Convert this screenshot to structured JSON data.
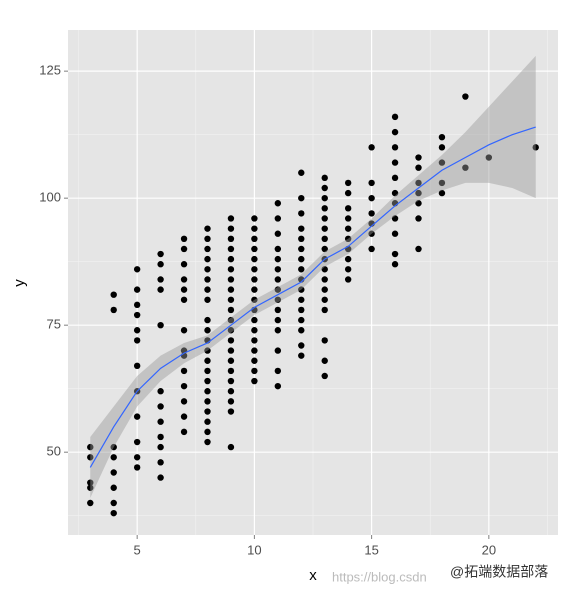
{
  "chart_data": {
    "type": "scatter",
    "xlabel": "x",
    "ylabel": "y",
    "xlim": [
      2.05,
      22.95
    ],
    "ylim": [
      33.7,
      133.1
    ],
    "xticks": [
      5,
      10,
      15,
      20
    ],
    "yticks": [
      50,
      75,
      100,
      125
    ],
    "grid": true,
    "panel_color": "#e5e5e5",
    "series": [
      {
        "color": "#000000",
        "x": [
          3,
          3,
          3,
          3,
          3,
          4,
          4,
          4,
          4,
          4,
          4,
          4,
          4,
          5,
          5,
          5,
          5,
          5,
          5,
          5,
          5,
          5,
          5,
          5,
          5,
          6,
          6,
          6,
          6,
          6,
          6,
          6,
          6,
          6,
          6,
          6,
          6,
          7,
          7,
          7,
          7,
          7,
          7,
          7,
          7,
          7,
          7,
          7,
          7,
          7,
          7,
          8,
          8,
          8,
          8,
          8,
          8,
          8,
          8,
          8,
          8,
          8,
          8,
          8,
          8,
          8,
          8,
          8,
          8,
          8,
          8,
          8,
          9,
          9,
          9,
          9,
          9,
          9,
          9,
          9,
          9,
          9,
          9,
          9,
          9,
          9,
          9,
          9,
          9,
          9,
          9,
          9,
          9,
          10,
          10,
          10,
          10,
          10,
          10,
          10,
          10,
          10,
          10,
          10,
          10,
          10,
          10,
          10,
          10,
          10,
          11,
          11,
          11,
          11,
          11,
          11,
          11,
          11,
          11,
          11,
          11,
          11,
          11,
          11,
          11,
          12,
          12,
          12,
          12,
          12,
          12,
          12,
          12,
          12,
          12,
          12,
          12,
          12,
          12,
          12,
          12,
          13,
          13,
          13,
          13,
          13,
          13,
          13,
          13,
          13,
          13,
          13,
          13,
          13,
          13,
          13,
          13,
          13,
          14,
          14,
          14,
          14,
          14,
          14,
          14,
          14,
          14,
          14,
          15,
          15,
          15,
          15,
          15,
          15,
          15,
          16,
          16,
          16,
          16,
          16,
          16,
          16,
          16,
          16,
          16,
          16,
          17,
          17,
          17,
          17,
          17,
          17,
          17,
          18,
          18,
          18,
          18,
          18,
          19,
          19,
          20,
          22
        ],
        "values": [
          40,
          44,
          49,
          51,
          43,
          38,
          40,
          43,
          46,
          49,
          51,
          78,
          81,
          47,
          49,
          52,
          57,
          62,
          67,
          72,
          74,
          77,
          79,
          82,
          86,
          45,
          48,
          51,
          53,
          56,
          59,
          62,
          75,
          82,
          84,
          87,
          89,
          54,
          57,
          60,
          63,
          66,
          69,
          70,
          74,
          80,
          82,
          84,
          87,
          90,
          92,
          52,
          54,
          56,
          58,
          60,
          62,
          64,
          66,
          68,
          70,
          72,
          74,
          76,
          80,
          82,
          84,
          86,
          88,
          90,
          92,
          94,
          51,
          58,
          60,
          62,
          64,
          66,
          68,
          70,
          72,
          74,
          76,
          78,
          80,
          82,
          84,
          86,
          88,
          90,
          92,
          94,
          96,
          64,
          66,
          68,
          70,
          72,
          74,
          76,
          78,
          80,
          82,
          84,
          86,
          88,
          90,
          92,
          94,
          96,
          63,
          66,
          70,
          74,
          76,
          78,
          80,
          82,
          84,
          86,
          88,
          90,
          93,
          96,
          99,
          69,
          71,
          74,
          76,
          78,
          80,
          82,
          84,
          86,
          88,
          90,
          92,
          94,
          97,
          100,
          105,
          65,
          68,
          72,
          78,
          80,
          82,
          84,
          86,
          88,
          90,
          92,
          94,
          96,
          98,
          100,
          102,
          104,
          84,
          86,
          88,
          90,
          92,
          94,
          96,
          98,
          101,
          103,
          90,
          93,
          95,
          97,
          100,
          103,
          110,
          87,
          89,
          93,
          96,
          99,
          101,
          104,
          107,
          110,
          113,
          116,
          90,
          96,
          99,
          101,
          103,
          106,
          108,
          101,
          103,
          107,
          110,
          112,
          106,
          120,
          108,
          110
        ]
      }
    ],
    "smooth": {
      "color": "#3366ff",
      "band_color": "#999999",
      "x": [
        3,
        4,
        5,
        6,
        7,
        8,
        9,
        10,
        11,
        12,
        13,
        14,
        15,
        16,
        17,
        18,
        19,
        20,
        21,
        22
      ],
      "values": [
        47,
        55,
        62,
        66.5,
        69.5,
        71.5,
        75,
        78.5,
        81,
        83.5,
        88,
        90.5,
        94.5,
        98.5,
        102,
        105.5,
        108,
        110.5,
        112.5,
        114
      ],
      "lower": [
        41,
        51,
        59,
        64,
        67.5,
        70,
        73.5,
        77,
        79.5,
        82,
        86.5,
        89,
        93,
        96.5,
        99.5,
        101.5,
        103,
        103,
        102,
        100
      ],
      "upper": [
        53,
        59,
        65,
        69,
        71.5,
        73,
        76.5,
        80,
        82.5,
        85,
        89.5,
        92,
        96,
        100.5,
        104.5,
        108.5,
        113,
        118,
        123,
        128
      ]
    },
    "watermark": [
      "https://blog.csdn",
      "@拓端数据部落"
    ]
  }
}
